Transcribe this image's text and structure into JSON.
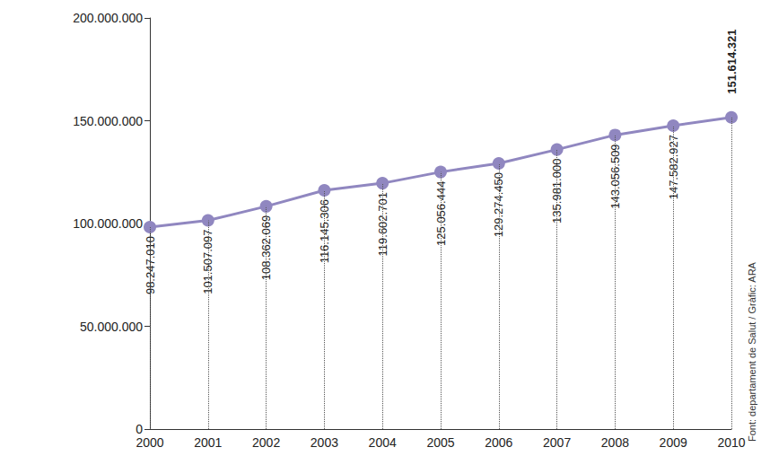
{
  "chart_data": {
    "type": "line",
    "categories": [
      "2000",
      "2001",
      "2002",
      "2003",
      "2004",
      "2005",
      "2006",
      "2007",
      "2008",
      "2009",
      "2010"
    ],
    "values": [
      98247010,
      101507097,
      108362069,
      116145306,
      119602701,
      125056444,
      129274450,
      135981000,
      143056509,
      147582927,
      151614321
    ],
    "value_labels": [
      "98.247.010",
      "101.507.097",
      "108.362.069",
      "116.145.306",
      "119.602.701",
      "125.056.444",
      "129.274.450",
      "135.981.000",
      "143.056.509",
      "147.582.927",
      "151.614.321"
    ],
    "color": "#9087c0",
    "marker": "circle",
    "line_style": "solid",
    "ylim": [
      0,
      200000000
    ],
    "yticks": [
      {
        "value": 0,
        "label": "0"
      },
      {
        "value": 50000000,
        "label": "50.000.000"
      },
      {
        "value": 100000000,
        "label": "100.000.000"
      },
      {
        "value": 150000000,
        "label": "150.000.000"
      },
      {
        "value": 200000000,
        "label": "200.000.000"
      }
    ],
    "grid": false,
    "data_labels": true,
    "annotations": [
      "Font: departament de Salut / Gràfic: ARA"
    ]
  }
}
